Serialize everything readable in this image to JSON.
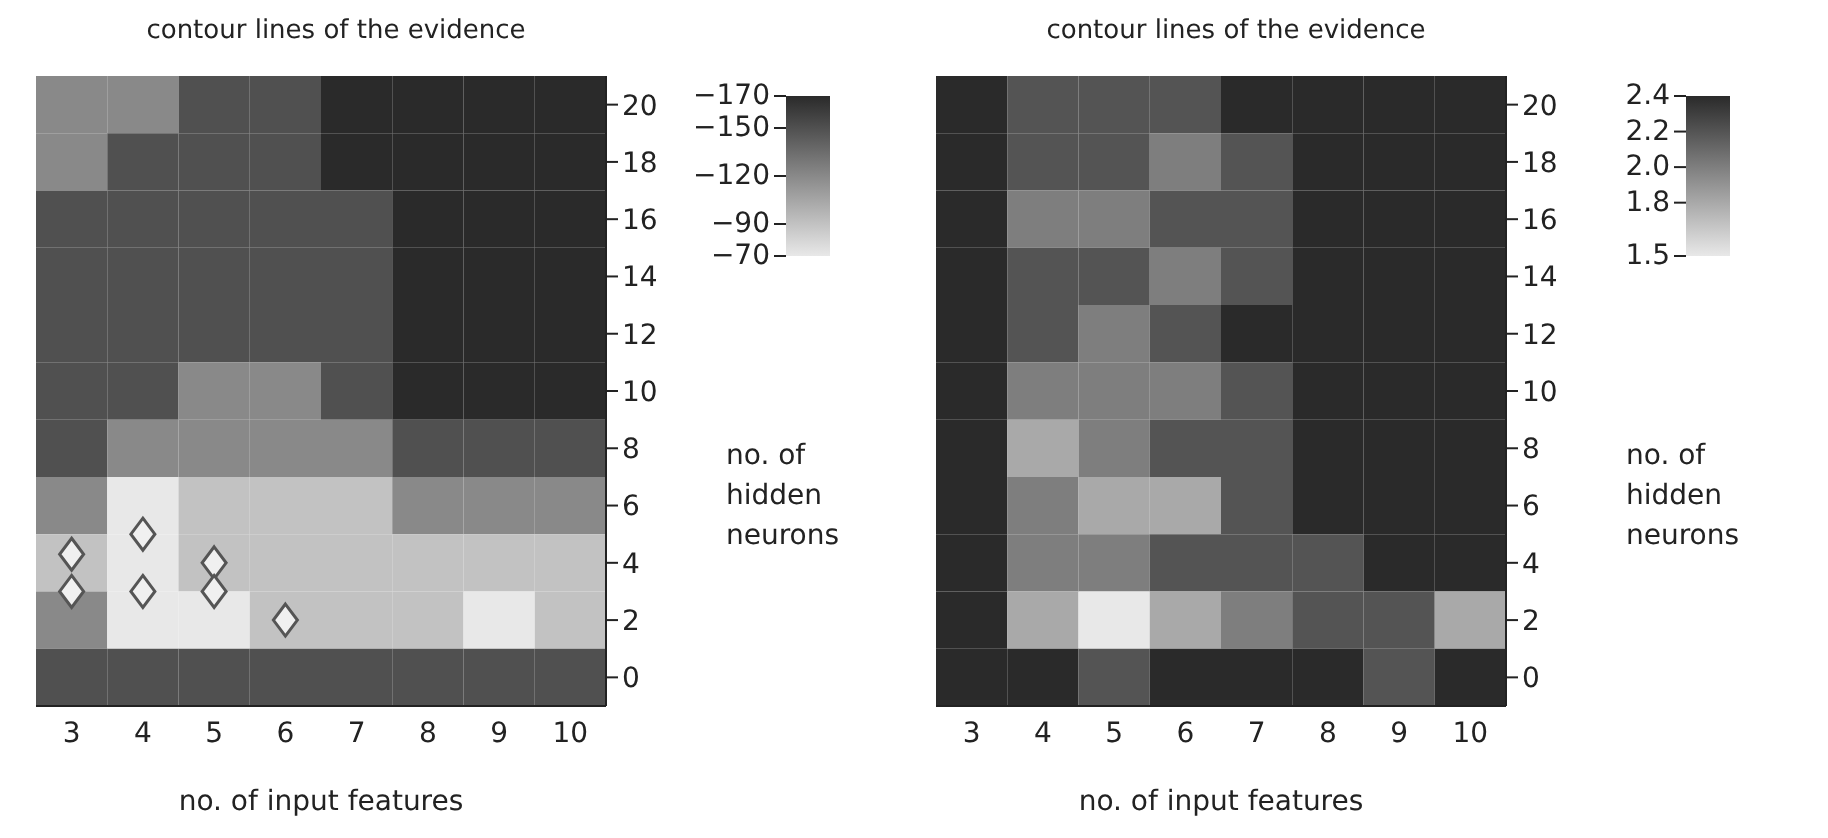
{
  "chart_data": [
    {
      "type": "heatmap",
      "title": "contour lines of the evidence",
      "xlabel": "no. of input features",
      "ylabel": "no. of hidden neurons",
      "categories": [
        "3",
        "4",
        "5",
        "6",
        "7",
        "8",
        "9",
        "10"
      ],
      "ylim": [
        -1,
        21
      ],
      "yticks": [
        0,
        2,
        4,
        6,
        8,
        10,
        12,
        14,
        16,
        18,
        20
      ],
      "cells": [
        [
          -120,
          -120,
          -150,
          -150,
          -170,
          -170,
          -170,
          -170
        ],
        [
          -120,
          -150,
          -150,
          -150,
          -170,
          -170,
          -170,
          -170
        ],
        [
          -150,
          -150,
          -150,
          -150,
          -150,
          -170,
          -170,
          -170
        ],
        [
          -150,
          -150,
          -150,
          -150,
          -150,
          -170,
          -170,
          -170
        ],
        [
          -150,
          -150,
          -150,
          -150,
          -150,
          -170,
          -170,
          -170
        ],
        [
          -150,
          -150,
          -120,
          -120,
          -150,
          -170,
          -170,
          -170
        ],
        [
          -150,
          -120,
          -120,
          -120,
          -120,
          -150,
          -150,
          -150
        ],
        [
          -120,
          -70,
          -90,
          -90,
          -90,
          -120,
          -120,
          -120
        ],
        [
          -90,
          -70,
          -90,
          -90,
          -90,
          -90,
          -90,
          -90
        ],
        [
          -120,
          -70,
          -70,
          -90,
          -90,
          -90,
          -70,
          -90
        ],
        [
          -150,
          -150,
          -150,
          -150,
          -150,
          -150,
          -150,
          -150
        ]
      ],
      "clim": [
        -170,
        -70
      ],
      "cticks": [
        {
          "value": -170,
          "label": "−170"
        },
        {
          "value": -150,
          "label": "−150"
        },
        {
          "value": -120,
          "label": "−120"
        },
        {
          "value": -90,
          "label": "−90"
        },
        {
          "value": -70,
          "label": "−70"
        }
      ],
      "series": [
        {
          "type": "scatter",
          "marker": "diamond",
          "color": "#f0f0f0",
          "x": [
            "3",
            "3",
            "4",
            "4",
            "5",
            "5",
            "6"
          ],
          "values": [
            3,
            4.3,
            5,
            3,
            4,
            3,
            2
          ]
        }
      ]
    },
    {
      "type": "heatmap",
      "title": "contour lines of the evidence",
      "xlabel": "no. of input features",
      "ylabel": "no. of hidden neurons",
      "categories": [
        "3",
        "4",
        "5",
        "6",
        "7",
        "8",
        "9",
        "10"
      ],
      "ylim": [
        -1,
        21
      ],
      "yticks": [
        0,
        2,
        4,
        6,
        8,
        10,
        12,
        14,
        16,
        18,
        20
      ],
      "cells": [
        [
          2.4,
          2.2,
          2.2,
          2.2,
          2.4,
          2.4,
          2.4,
          2.4
        ],
        [
          2.4,
          2.2,
          2.2,
          2.0,
          2.2,
          2.4,
          2.4,
          2.4
        ],
        [
          2.4,
          2.0,
          2.0,
          2.2,
          2.2,
          2.4,
          2.4,
          2.4
        ],
        [
          2.4,
          2.2,
          2.2,
          2.0,
          2.2,
          2.4,
          2.4,
          2.4
        ],
        [
          2.4,
          2.2,
          2.0,
          2.2,
          2.4,
          2.4,
          2.4,
          2.4
        ],
        [
          2.4,
          2.0,
          2.0,
          2.0,
          2.2,
          2.4,
          2.4,
          2.4
        ],
        [
          2.4,
          1.8,
          2.0,
          2.2,
          2.2,
          2.4,
          2.4,
          2.4
        ],
        [
          2.4,
          2.0,
          1.8,
          1.8,
          2.2,
          2.4,
          2.4,
          2.4
        ],
        [
          2.4,
          2.0,
          2.0,
          2.2,
          2.2,
          2.2,
          2.4,
          2.4
        ],
        [
          2.4,
          1.8,
          1.5,
          1.8,
          2.0,
          2.2,
          2.2,
          1.8
        ],
        [
          2.4,
          2.4,
          2.2,
          2.4,
          2.4,
          2.4,
          2.2,
          2.4
        ]
      ],
      "clim": [
        2.4,
        1.5
      ],
      "cticks": [
        {
          "value": 2.4,
          "label": "2.4"
        },
        {
          "value": 2.2,
          "label": "2.2"
        },
        {
          "value": 2.0,
          "label": "2.0"
        },
        {
          "value": 1.8,
          "label": "1.8"
        },
        {
          "value": 1.5,
          "label": "1.5"
        }
      ]
    }
  ]
}
